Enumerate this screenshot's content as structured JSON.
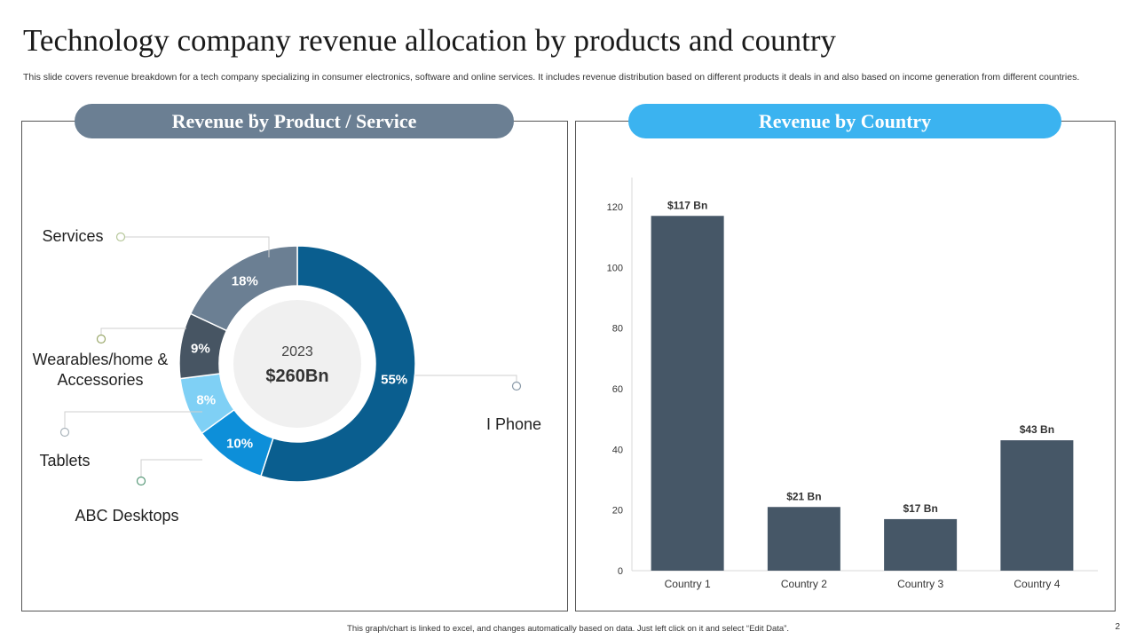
{
  "title": "Technology company revenue allocation by products and country",
  "description": "This slide covers revenue breakdown for a tech company specializing in consumer electronics, software and online services. It includes revenue distribution based on different products it deals in and also based on income generation from different countries.",
  "left_panel": {
    "heading": "Revenue ḃy Product / Service"
  },
  "right_panel": {
    "heading": "Revenue by Country"
  },
  "footer": "This graph/chart is linked to excel, and changes automatically based on data. Just left click on it and select “Edit Data”.",
  "page_number": "2",
  "colors": {
    "iphone": "#0a5e8f",
    "abc_desktops": "#0d8fd9",
    "tablets": "#7fd0f5",
    "wearables": "#475563",
    "services": "#6b7f93",
    "bars": "#465767",
    "center": "#f0f0f0"
  },
  "chart_data": [
    {
      "type": "pie",
      "variant": "donut",
      "title": "Revenue by Product / Service",
      "center_label": {
        "year": "2023",
        "total": "$260Bn"
      },
      "slices": [
        {
          "label": "I Phone",
          "value": 55,
          "display": "55%"
        },
        {
          "label": "ABC Desktops",
          "value": 10,
          "display": "10%"
        },
        {
          "label": "Tablets",
          "value": 8,
          "display": "8%"
        },
        {
          "label": "Wearables/home & Accessories",
          "value": 9,
          "display": "9%"
        },
        {
          "label": "Services",
          "value": 18,
          "display": "18%"
        }
      ]
    },
    {
      "type": "bar",
      "title": "Revenue by Country",
      "categories": [
        "Country 1",
        "Country 2",
        "Country 3",
        "Country 4"
      ],
      "values": [
        117,
        21,
        17,
        43
      ],
      "data_labels": [
        "$117 Bn",
        "$21 Bn",
        "$17 Bn",
        "$43 Bn"
      ],
      "yticks": [
        0,
        20,
        40,
        60,
        80,
        100,
        120
      ],
      "ylim": [
        0,
        130
      ],
      "xlabel": "",
      "ylabel": ""
    }
  ]
}
